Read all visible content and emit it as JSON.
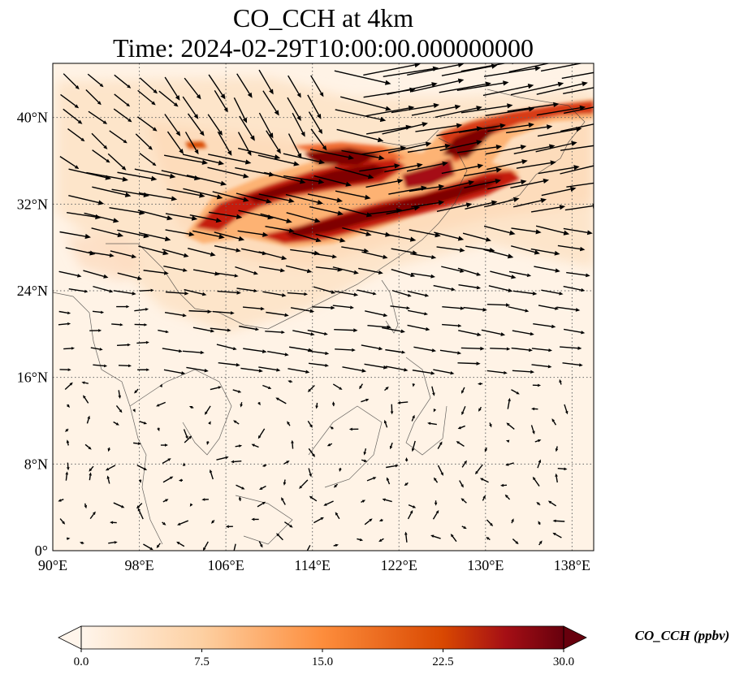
{
  "title": {
    "line1": "CO_CCH at 4km",
    "line2": "Time: 2024-02-29T10:00:00.000000000"
  },
  "map": {
    "projection": "PlateCarree",
    "lon_range": [
      90,
      140
    ],
    "lat_range": [
      0,
      45
    ],
    "gridlines": "dotted",
    "x_ticks": [
      {
        "value": 90,
        "label": "90°E"
      },
      {
        "value": 98,
        "label": "98°E"
      },
      {
        "value": 106,
        "label": "106°E"
      },
      {
        "value": 114,
        "label": "114°E"
      },
      {
        "value": 122,
        "label": "122°E"
      },
      {
        "value": 130,
        "label": "130°E"
      },
      {
        "value": 138,
        "label": "138°E"
      }
    ],
    "y_ticks": [
      {
        "value": 0,
        "label": "0°"
      },
      {
        "value": 8,
        "label": "8°N"
      },
      {
        "value": 16,
        "label": "16°N"
      },
      {
        "value": 24,
        "label": "24°N"
      },
      {
        "value": 32,
        "label": "32°N"
      },
      {
        "value": 40,
        "label": "40°N"
      }
    ],
    "background_color": "#fff5eb",
    "plume_color_low": "#fdd0a2",
    "plume_color_mid": "#ef6a32",
    "plume_color_high": "#7f0000",
    "wind_field": "westerly flow north of 24°N, weak variable winds in tropics"
  },
  "colorbar": {
    "label": "CO_CCH (ppbv)",
    "min": 0.0,
    "max": 30.0,
    "extend": "both",
    "colormap": "OrRd",
    "ticks": [
      {
        "value": 0.0,
        "label": "0.0"
      },
      {
        "value": 7.5,
        "label": "7.5"
      },
      {
        "value": 15.0,
        "label": "15.0"
      },
      {
        "value": 22.5,
        "label": "22.5"
      },
      {
        "value": 30.0,
        "label": "30.0"
      }
    ]
  }
}
